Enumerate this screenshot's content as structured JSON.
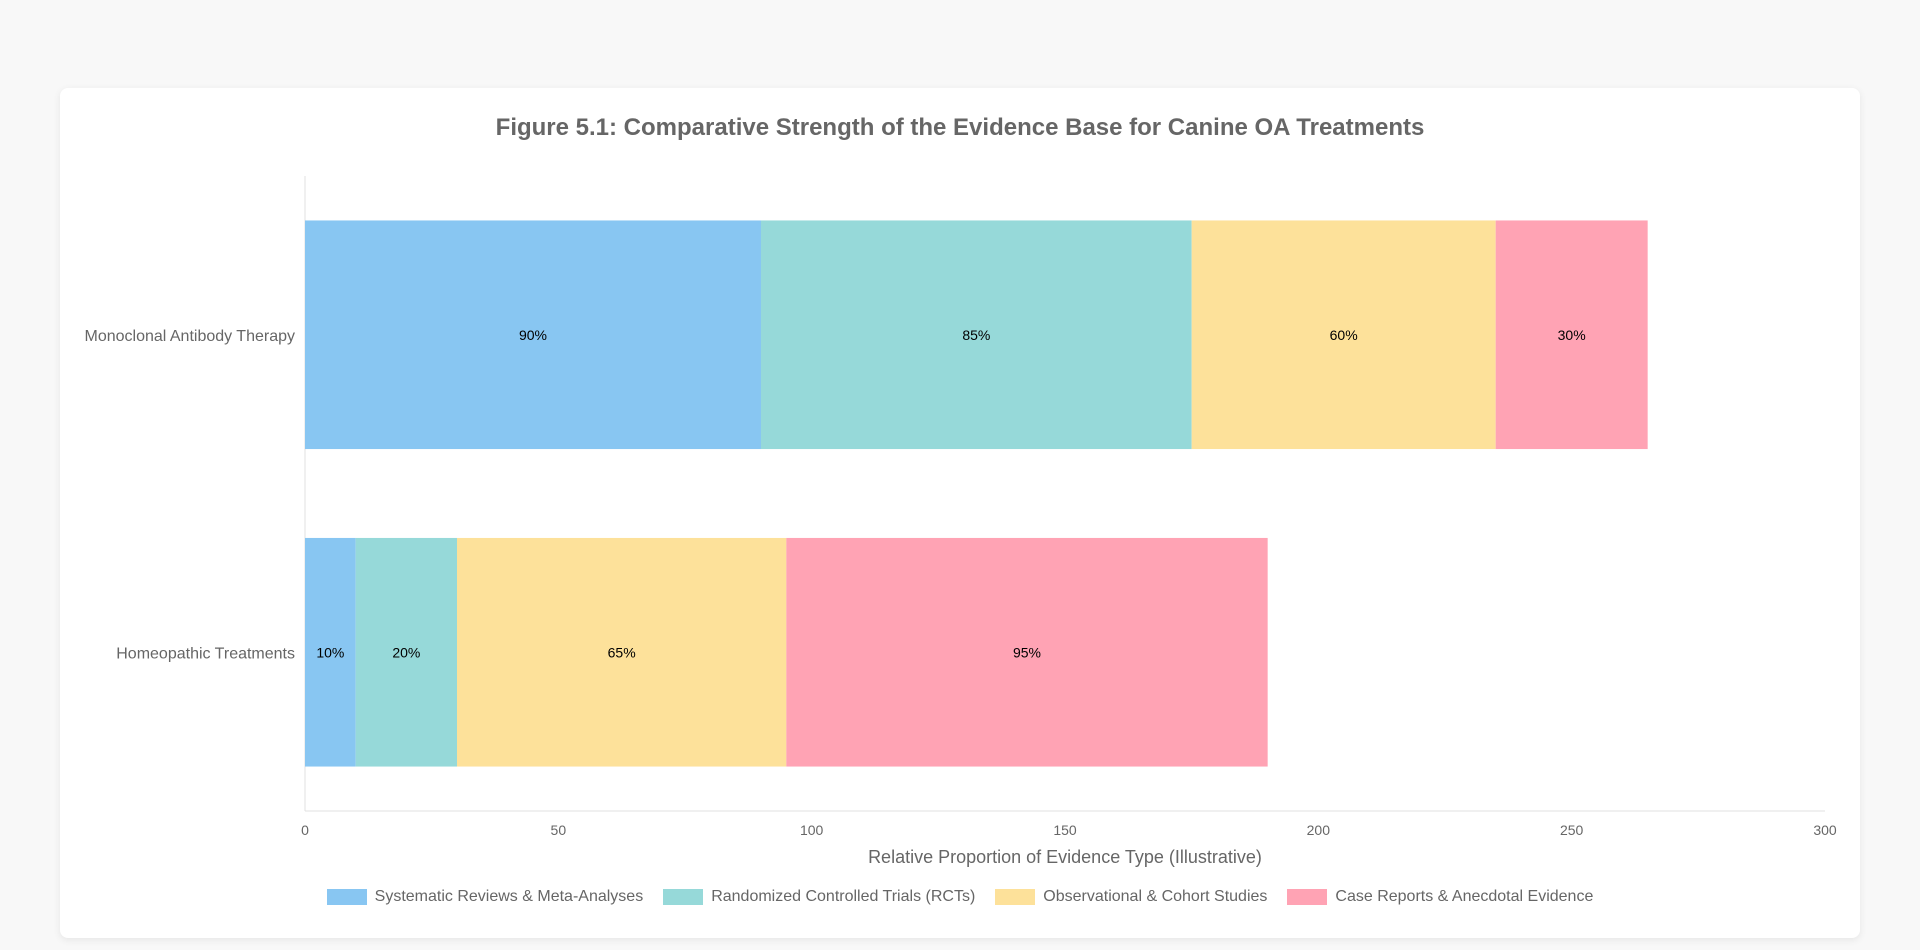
{
  "chart_data": {
    "type": "bar",
    "orientation": "horizontal",
    "stacked": true,
    "title": "Figure 5.1: Comparative Strength of the Evidence Base for Canine OA Treatments",
    "xlabel": "Relative Proportion of Evidence Type (Illustrative)",
    "ylabel": "",
    "xlim": [
      0,
      300
    ],
    "xticks": [
      "0",
      "50",
      "100",
      "150",
      "200",
      "250",
      "300"
    ],
    "categories": [
      "Monoclonal Antibody Therapy",
      "Homeopathic Treatments"
    ],
    "series": [
      {
        "name": "Systematic Reviews & Meta-Analyses",
        "color": "#88c6f2",
        "values": [
          90,
          10
        ],
        "labels": [
          "90%",
          "10%"
        ]
      },
      {
        "name": "Randomized Controlled Trials (RCTs)",
        "color": "#96d9d9",
        "values": [
          85,
          20
        ],
        "labels": [
          "85%",
          "20%"
        ]
      },
      {
        "name": "Observational & Cohort Studies",
        "color": "#fde19a",
        "values": [
          60,
          65
        ],
        "labels": [
          "60%",
          "65%"
        ]
      },
      {
        "name": "Case Reports & Anecdotal Evidence",
        "color": "#ffa3b4",
        "values": [
          30,
          95
        ],
        "labels": [
          "30%",
          "95%"
        ]
      }
    ],
    "grid": false,
    "legend_position": "bottom"
  }
}
